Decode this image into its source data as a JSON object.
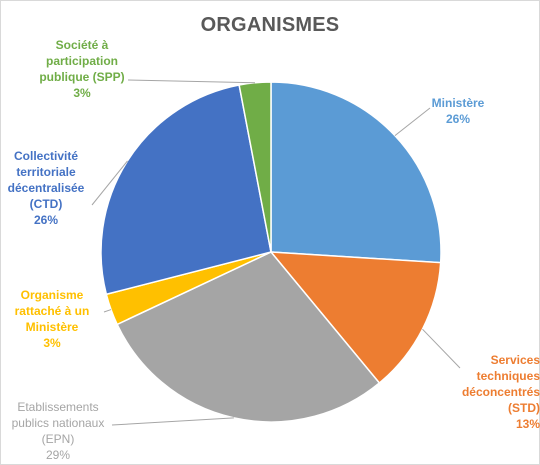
{
  "chart_data": {
    "type": "pie",
    "title": "ORGANISMES",
    "slices": [
      {
        "lines": [
          "Ministère"
        ],
        "value": 26,
        "label": "26%",
        "color": "#5B9BD5"
      },
      {
        "lines": [
          "Services",
          "techniques",
          "déconcentrés",
          "(STD)"
        ],
        "value": 13,
        "label": "13%",
        "color": "#ED7D31"
      },
      {
        "lines": [
          "Etablissements",
          "publics nationaux",
          "(EPN)"
        ],
        "value": 29,
        "label": "29%",
        "color": "#A5A5A5"
      },
      {
        "lines": [
          "Organisme",
          "rattaché à un",
          "Ministère"
        ],
        "value": 3,
        "label": "3%",
        "color": "#FFC000"
      },
      {
        "lines": [
          "Collectivité",
          "territoriale",
          "décentralisée",
          "(CTD)"
        ],
        "value": 26,
        "label": "26%",
        "color": "#4472C4"
      },
      {
        "lines": [
          "Société à",
          "participation",
          "publique (SPP)"
        ],
        "value": 3,
        "label": "3%",
        "color": "#70AD47"
      }
    ]
  }
}
